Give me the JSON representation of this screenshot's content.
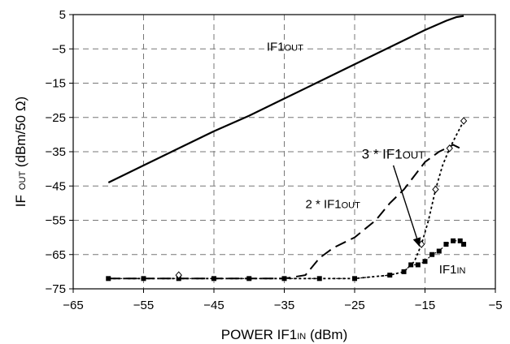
{
  "chart_data": {
    "type": "line",
    "xlabel": {
      "main": "POWER IF1",
      "sub": "IN",
      "unit": " (dBm)"
    },
    "ylabel": {
      "main": "IF",
      "sub": "OUT",
      "unit": " (dBm/50 Ω)"
    },
    "xlim": [
      -65,
      -5
    ],
    "ylim": [
      -75,
      5
    ],
    "xticks": [
      -65,
      -55,
      -45,
      -35,
      -25,
      -15,
      -5
    ],
    "yticks": [
      5,
      -5,
      -15,
      -25,
      -35,
      -45,
      -55,
      -65,
      -75
    ],
    "xtick_labels": [
      "−65",
      "−55",
      "−45",
      "−35",
      "−25",
      "−15",
      "−5"
    ],
    "ytick_labels": [
      "5",
      "−5",
      "−15",
      "−25",
      "−35",
      "−45",
      "−55",
      "−65",
      "−75"
    ],
    "grid": true,
    "series": [
      {
        "name": "IF1OUT",
        "style": "solid",
        "x": [
          -60,
          -55,
          -50,
          -45,
          -40,
          -35,
          -30,
          -25,
          -20,
          -15,
          -12,
          -10.5,
          -9.5
        ],
        "y": [
          -44,
          -39,
          -34,
          -29,
          -24.5,
          -19.5,
          -14.5,
          -9.5,
          -4.5,
          0.5,
          3.2,
          4.3,
          4.6
        ]
      },
      {
        "name": "2 * IF1OUT",
        "style": "long-dash",
        "x": [
          -60,
          -55,
          -50,
          -45,
          -40,
          -35,
          -32,
          -30,
          -28,
          -25,
          -22,
          -20,
          -18,
          -15,
          -13,
          -11,
          -10
        ],
        "y": [
          -72,
          -72,
          -72,
          -72,
          -72,
          -72,
          -71,
          -66,
          -63,
          -60,
          -55,
          -50,
          -46,
          -38,
          -35,
          -33,
          -34
        ]
      },
      {
        "name": "3 * IF1OUT",
        "style": "dotted-diamond",
        "x": [
          -60,
          -50,
          -40,
          -30,
          -25,
          -20,
          -18,
          -16.5,
          -15.5,
          -14.5,
          -13.5,
          -12.5,
          -11.5,
          -10.5,
          -9.5
        ],
        "y": [
          -72,
          -72,
          -72,
          -72,
          -72,
          -71,
          -70,
          -67,
          -62,
          -55,
          -46,
          -39,
          -34,
          -30,
          -26
        ]
      },
      {
        "name": "IF1IN",
        "style": "squares",
        "x": [
          -60,
          -55,
          -50,
          -45,
          -40,
          -35,
          -30,
          -25,
          -20,
          -18,
          -17,
          -16,
          -15,
          -14,
          -13,
          -12,
          -11,
          -10,
          -9.5
        ],
        "y": [
          -72,
          -72,
          -72,
          -72,
          -72,
          -72,
          -72,
          -72,
          -71,
          -70,
          -68,
          -68,
          -67,
          -65,
          -64,
          -62,
          -61,
          -61,
          -62
        ]
      }
    ],
    "annotations": [
      {
        "main": "IF1",
        "sub": "OUT",
        "x": -37.5,
        "y": -5.5,
        "size": "normal"
      },
      {
        "main": "3 * IF1",
        "sub": "OUT",
        "x": -24,
        "y": -37,
        "size": "big"
      },
      {
        "main": "2 * IF1",
        "sub": "OUT",
        "x": -32,
        "y": -51.5,
        "size": "normal"
      },
      {
        "main": "IF1",
        "sub": "IN",
        "x": -13,
        "y": -70.5,
        "size": "normal"
      }
    ],
    "arrow": {
      "from": [
        -19.5,
        -39
      ],
      "to": [
        -15.8,
        -62.5
      ]
    },
    "diamonds_series": {
      "x": [
        -50,
        -15.5,
        -13.5,
        -11.5,
        -9.5
      ],
      "y": [
        -71,
        -62,
        -46,
        -34,
        -26
      ]
    }
  }
}
